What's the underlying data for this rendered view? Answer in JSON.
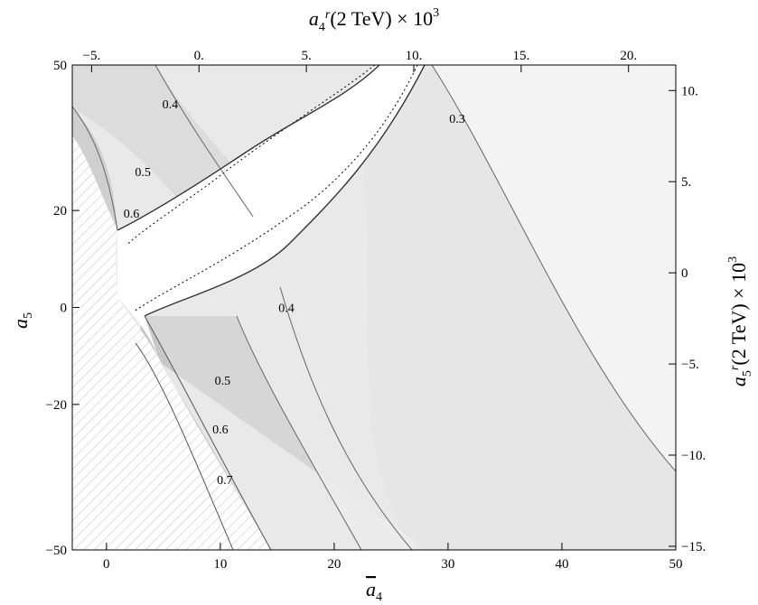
{
  "chart_data": {
    "type": "contour",
    "xlabel": "ā4",
    "ylabel": "ā5",
    "top_xlabel": "a4r(2 TeV) × 10^3",
    "right_ylabel": "a5r(2 TeV) × 10^3",
    "xlim": [
      -3,
      50
    ],
    "ylim": [
      -50,
      50
    ],
    "top_lim": [
      -5.9,
      22.2
    ],
    "right_lim": [
      -15.2,
      11.4
    ],
    "x_ticks": [
      0,
      10,
      20,
      30,
      40,
      50
    ],
    "y_ticks": [
      -50,
      -20,
      0,
      20,
      50
    ],
    "top_ticks": [
      -5,
      0,
      5,
      10,
      15,
      20
    ],
    "top_tick_labels": [
      "−5.",
      "0.",
      "5.",
      "10.",
      "15.",
      "20."
    ],
    "right_ticks": [
      -15,
      -10,
      -5,
      0,
      5,
      10
    ],
    "right_tick_labels": [
      "−15.",
      "−10.",
      "−5.",
      "0",
      "5.",
      "10."
    ],
    "x_tick_labels": [
      "0",
      "10",
      "20",
      "30",
      "40",
      "50"
    ],
    "y_tick_labels": [
      "−50",
      "−20",
      "0",
      "20",
      "50"
    ],
    "contour_labels": [
      {
        "text": "0.4",
        "x": 5.6,
        "y": 42
      },
      {
        "text": "0.3",
        "x": 30.8,
        "y": 39
      },
      {
        "text": "0.5",
        "x": 3.2,
        "y": 28
      },
      {
        "text": "0.6",
        "x": 2.2,
        "y": 19.5
      },
      {
        "text": "0.4",
        "x": 15.8,
        "y": 0
      },
      {
        "text": "0.5",
        "x": 10.2,
        "y": -15
      },
      {
        "text": "0.6",
        "x": 10.0,
        "y": -25
      },
      {
        "text": "0.7",
        "x": 10.4,
        "y": -35.5
      }
    ]
  }
}
